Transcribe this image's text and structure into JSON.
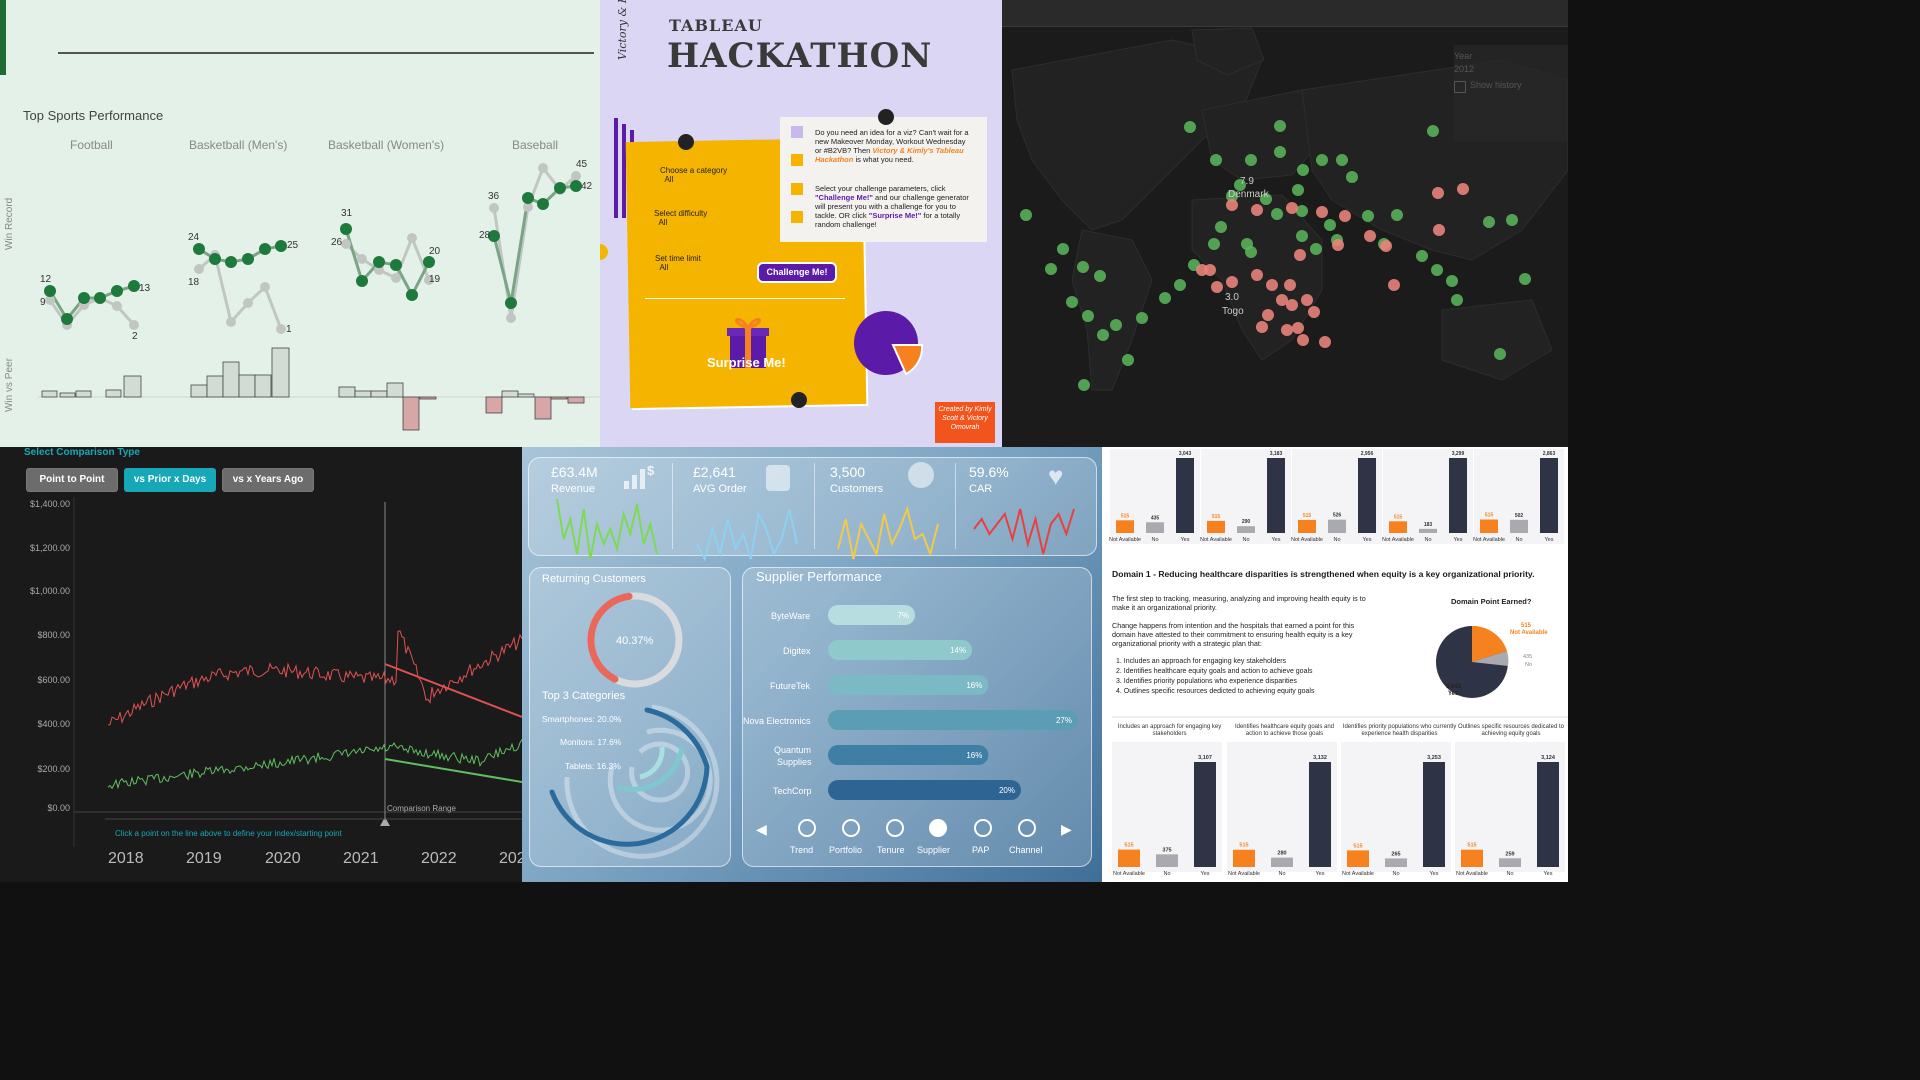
{
  "sports": {
    "title": "Top Sports Performance",
    "columns": [
      "Football",
      "Basketball (Men's)",
      "Basketball (Women's)",
      "Baseball"
    ],
    "axis_win_record": "Win Record",
    "axis_win_vs_peer": "Win vs Peer",
    "football_labels": [
      "12",
      "9",
      "13",
      "2"
    ],
    "mbb_labels": [
      "24",
      "18",
      "25",
      "1"
    ],
    "wbb_labels": [
      "31",
      "26",
      "20",
      "19"
    ],
    "base_labels": [
      "36",
      "28",
      "45",
      "42"
    ],
    "colors": {
      "green": "#1e7a3c",
      "gray": "#c2c6c3"
    }
  },
  "hackathon": {
    "script_title": "Victory & Kimly's",
    "brand": "TABLEAU",
    "title": "HACKATHON",
    "para1": "Do you need an idea for a viz? Can't wait for a new Makeover Monday, Workout Wednesday or #B2VB? Then",
    "para1_em": "Victory & Kimly's Tableau Hackathon",
    "para1_end": "is what you need.",
    "para2a": "Select your challenge parameters, click",
    "para2_em1": "\"Challenge Me!\"",
    "para2b": "and our challenge generator will present you with a challenge for you to tackle. OR click",
    "para2_em2": "\"Surprise Me!\"",
    "para2c": "for a totally random challenge!",
    "choose_category": "Choose a category",
    "choose_category_value": "All",
    "select_difficulty": "Select difficulty",
    "select_difficulty_value": "All",
    "set_time": "Set time limit",
    "set_time_value": "All",
    "challenge_button": "Challenge Me!",
    "surprise_button": "Surprise Me!",
    "credit": "Created by Kimly Scott & Victory Omovrah"
  },
  "map": {
    "year_label": "Year",
    "year_value": "2012",
    "show_history": "Show history",
    "high_value": "7.9",
    "high_country": "Denmark",
    "low_value": "3.0",
    "low_country": "Togo"
  },
  "comparison": {
    "title": "Select Comparison Type",
    "buttons": [
      "Point to Point",
      "vs Prior x Days",
      "vs x Years Ago"
    ],
    "y_ticks": [
      "$1,400.00",
      "$1,200.00",
      "$1,000.00",
      "$800.00",
      "$600.00",
      "$400.00",
      "$200.00",
      "$0.00"
    ],
    "x_ticks": [
      "2018",
      "2019",
      "2020",
      "2021",
      "2022",
      "202"
    ],
    "range_label": "Comparison Range",
    "hint": "Click a point on the line above to define your index/starting point",
    "colors": {
      "active": "#17a8b8",
      "red": "#e05252",
      "green": "#5fbf5f"
    }
  },
  "kpi": {
    "cards": [
      {
        "value": "£63.4M",
        "label": "Revenue"
      },
      {
        "value": "£2,641",
        "label": "AVG Order"
      },
      {
        "value": "3,500",
        "label": "Customers"
      },
      {
        "value": "59.6%",
        "label": "CAR"
      }
    ],
    "returning_title": "Returning Customers",
    "returning_value": "40.37%",
    "top3_title": "Top 3 Categories",
    "top3": [
      "Smartphones: 20.0%",
      "Monitors: 17.6%",
      "Tablets: 16.3%"
    ],
    "supplier_title": "Supplier Performance",
    "suppliers": [
      {
        "name": "ByteWare",
        "pct": "7%"
      },
      {
        "name": "Digitex",
        "pct": "14%"
      },
      {
        "name": "FutureTek",
        "pct": "16%"
      },
      {
        "name": "Nova Electronics",
        "pct": "27%"
      },
      {
        "name": "Quantum",
        "name2": "Supplies",
        "pct": "16%"
      },
      {
        "name": "TechCorp",
        "pct": "20%"
      }
    ],
    "nav": [
      "Trend",
      "Portfolio",
      "Tenure",
      "Supplier",
      "PAP",
      "Channel"
    ]
  },
  "health": {
    "top_charts": [
      {
        "values": [
          "515",
          "435",
          "3,043"
        ]
      },
      {
        "values": [
          "515",
          "290",
          "3,183"
        ]
      },
      {
        "values": [
          "515",
          "526",
          "2,956"
        ]
      },
      {
        "values": [
          "515",
          "183",
          "3,299"
        ]
      },
      {
        "values": [
          "515",
          "502",
          "2,863"
        ]
      }
    ],
    "cat_labels": [
      "Not Available",
      "No",
      "Yes"
    ],
    "domain_title": "Domain 1 - Reducing healthcare disparities is strengthened when equity is a key organizational priority.",
    "para1": "The first step to tracking, measuring, analyzing and improving health equity is to make it an organizational priority.",
    "para2": "Change happens from intention and the hospitals that earned a point for this domain have attested to their commitment to ensuring health equity is a key organizational priority with a strategic plan that:",
    "list": [
      "1. Includes an approach for engaging key stakeholders",
      "2. Identifies healthcare equity goals and action to achieve goals",
      "3. Identifies priority populations who experience disparities",
      "4. Outlines specific resources dedicted  to achieving equity goals"
    ],
    "pie_title": "Domain Point Earned?",
    "pie_labels": {
      "na": "515",
      "na_label": "Not Available",
      "no": "435",
      "no_label": "No",
      "yes": "3,043",
      "yes_label": "Yes"
    },
    "bottom_titles": [
      "Includes an approach for engaging key stakeholders",
      "Identifies healthcare equity goals and action to achieve those goals",
      "Identifies priority populations who currently experience health disparities",
      "Outlines specific resources dedicated to achieving equity goals"
    ],
    "bottom_charts": [
      {
        "values": [
          "515",
          "375",
          "3,107"
        ]
      },
      {
        "values": [
          "515",
          "280",
          "3,132"
        ]
      },
      {
        "values": [
          "515",
          "265",
          "3,253"
        ]
      },
      {
        "values": [
          "515",
          "259",
          "3,124"
        ]
      }
    ],
    "colors": {
      "orange": "#f5821f",
      "gray": "#a9a9b0",
      "navy": "#2e3445"
    }
  }
}
